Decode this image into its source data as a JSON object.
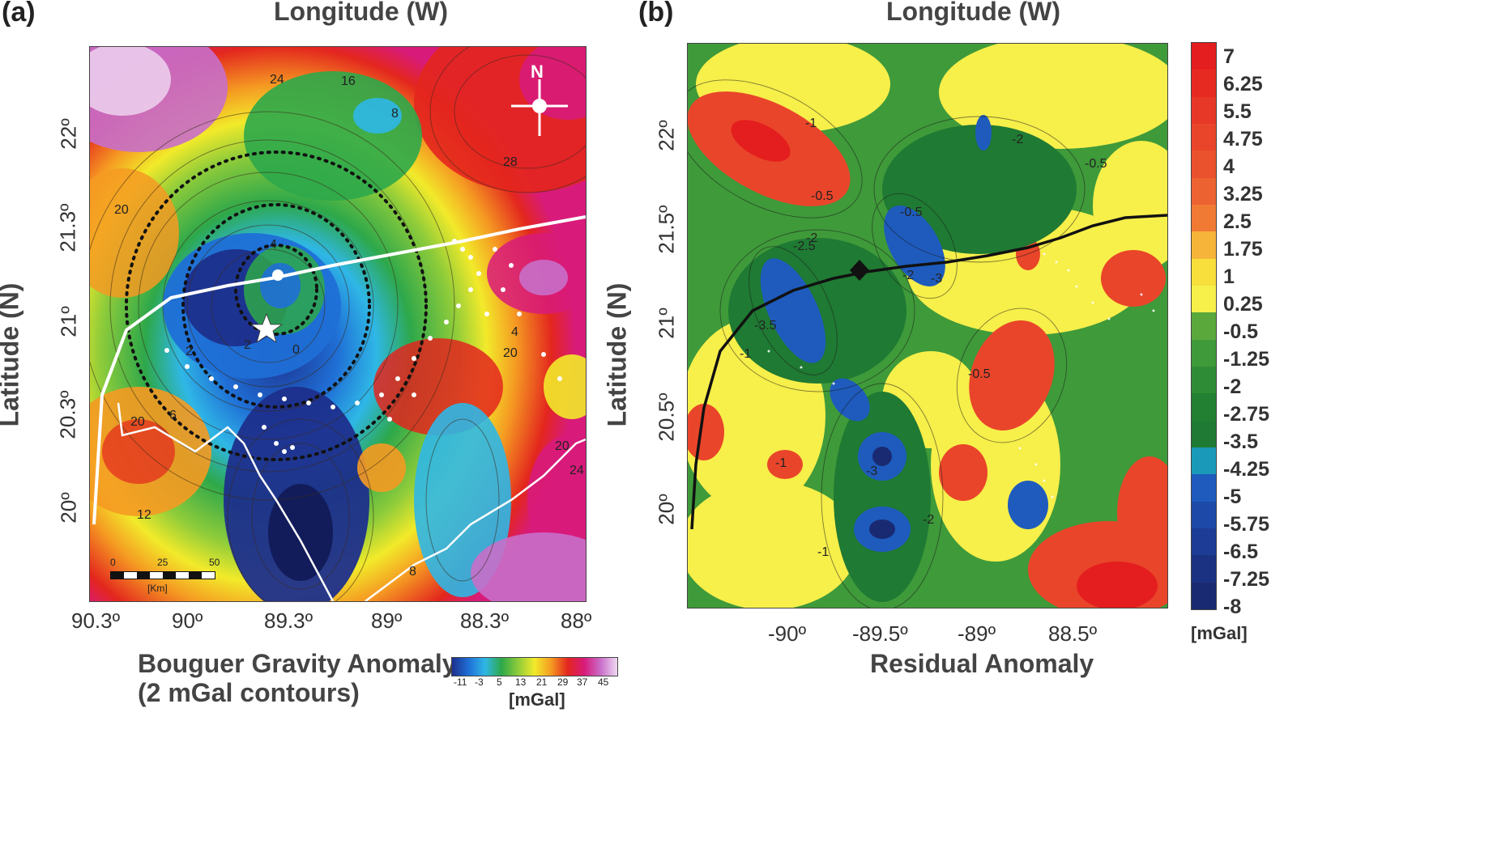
{
  "panel_a": {
    "label": "(a)",
    "top_title": "Longitude (W)",
    "y_title": "Latitude (N)",
    "x_ticks": [
      "90.3º",
      "90º",
      "89.3º",
      "89º",
      "88.3º",
      "88º"
    ],
    "y_ticks": [
      "22º",
      "21.3º",
      "21º",
      "20.3º",
      "20º"
    ],
    "title_line1": "Bouguer Gravity Anomaly",
    "title_line2": "(2 mGal contours)",
    "north_label": "N",
    "scalebar": {
      "labels": [
        "0",
        "25",
        "50"
      ],
      "unit": "[Km]"
    },
    "contour_labels": [
      "24",
      "16",
      "8",
      "28",
      "20",
      "12",
      "2",
      "4",
      "0",
      "20",
      "6",
      "2",
      "8",
      "24",
      "20",
      "20",
      "4"
    ],
    "colorbar": {
      "ticks": [
        "-11",
        "-3",
        "5",
        "13",
        "21",
        "29",
        "37",
        "45"
      ],
      "unit": "[mGal]",
      "colors": [
        "#1d2f8c",
        "#1f6fd6",
        "#2fb7e6",
        "#2ea84a",
        "#8fcc3a",
        "#f2ea2a",
        "#f59a22",
        "#e3261e",
        "#d81b7a",
        "#c86fc9",
        "#f0d9f2"
      ]
    }
  },
  "panel_b": {
    "label": "(b)",
    "top_title": "Longitude (W)",
    "y_title": "Latitude (N)",
    "x_ticks": [
      "-90º",
      "-89.5º",
      "-89º",
      "88.5º"
    ],
    "y_ticks": [
      "22º",
      "21.5º",
      "21º",
      "20.5º",
      "20º"
    ],
    "bottom_title": "Residual Anomaly",
    "contour_labels": [
      "-1",
      "-0.5",
      "-2.5",
      "-2",
      "-0.5",
      "-3",
      "-2",
      "-1",
      "-3.5",
      "-3",
      "-2",
      "-0.5",
      "-1",
      "-1",
      "-2",
      "-0.5"
    ],
    "colorbar": {
      "labels": [
        "7",
        "6.25",
        "5.5",
        "4.75",
        "4",
        "3.25",
        "2.5",
        "1.75",
        "1",
        "0.25",
        "-0.5",
        "-1.25",
        "-2",
        "-2.75",
        "-3.5",
        "-4.25",
        "-5",
        "-5.75",
        "-6.5",
        "-7.25",
        "-8"
      ],
      "colors": [
        "#e41e1e",
        "#e62a22",
        "#e73726",
        "#e9452a",
        "#ea512d",
        "#ec6230",
        "#f07a34",
        "#f6b43a",
        "#f8df3c",
        "#f7ef4a",
        "#5aa83c",
        "#3f9a3a",
        "#2f8c36",
        "#218032",
        "#1f7a33",
        "#1a9ab8",
        "#1e5bbd",
        "#1d4aa8",
        "#1c3c95",
        "#1b3283",
        "#1a2a72"
      ],
      "unit": "[mGal]"
    }
  },
  "colors": {
    "bouguer_low": "#1d2f8c",
    "bouguer_high": "#e3261e",
    "residual_high": "#e41e1e",
    "residual_low": "#1a2a72",
    "coastline_a": "#ffffff",
    "coastline_b": "#111111"
  }
}
